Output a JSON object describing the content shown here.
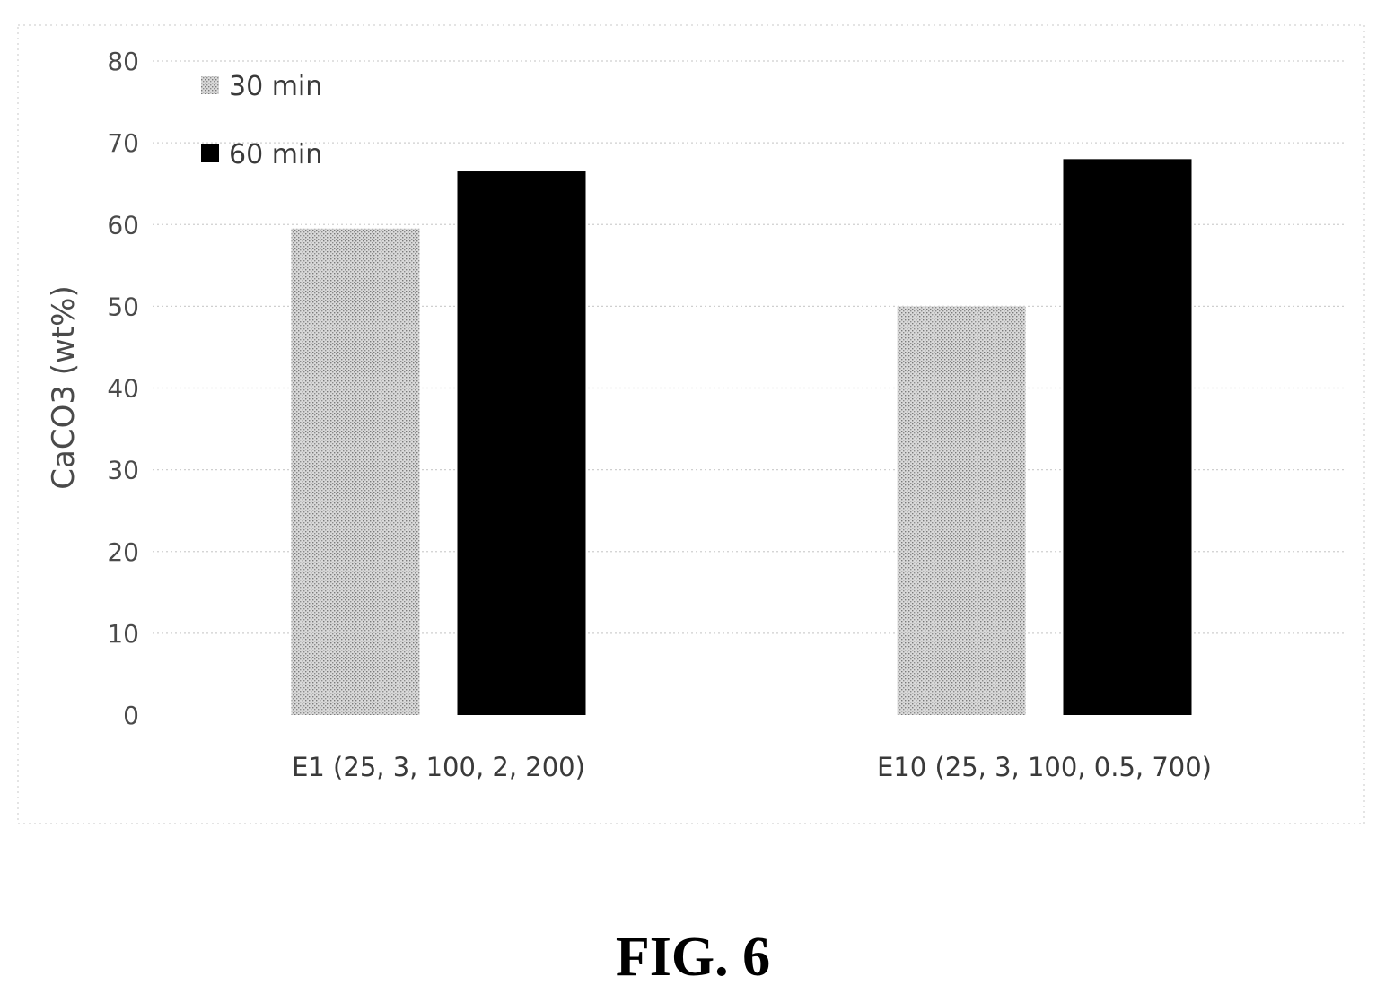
{
  "chart_data": {
    "type": "bar",
    "categories": [
      "E1 (25, 3, 100, 2, 200)",
      "E10 (25, 3, 100, 0.5, 700)"
    ],
    "series": [
      {
        "name": "30 min",
        "values": [
          59.5,
          50
        ],
        "color": "#bdbdbd",
        "pattern": "dotted-gray"
      },
      {
        "name": "60 min",
        "values": [
          66.5,
          68
        ],
        "color": "#000000",
        "pattern": "solid"
      }
    ],
    "ylabel": "CaCO3 (wt%)",
    "xlabel": "",
    "ylim": [
      0,
      80
    ],
    "yticks": [
      0,
      10,
      20,
      30,
      40,
      50,
      60,
      70,
      80
    ],
    "grid": true,
    "legend_position": "top-left"
  },
  "caption": "FIG. 6"
}
